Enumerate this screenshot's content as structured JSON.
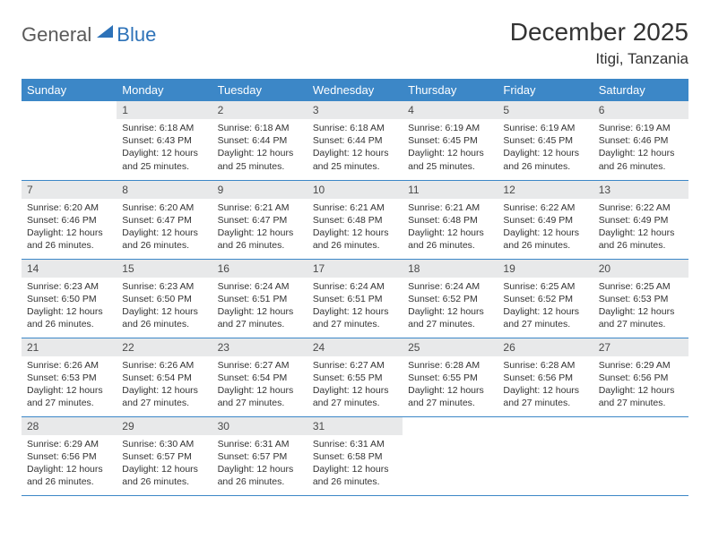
{
  "logo": {
    "general": "General",
    "blue": "Blue"
  },
  "title": "December 2025",
  "location": "Itigi, Tanzania",
  "weekdays": [
    "Sunday",
    "Monday",
    "Tuesday",
    "Wednesday",
    "Thursday",
    "Friday",
    "Saturday"
  ],
  "colors": {
    "header_bg": "#3c87c7",
    "header_fg": "#ffffff",
    "daynum_bg": "#e8e9ea",
    "row_border": "#3c87c7",
    "text": "#333333"
  },
  "weeks": [
    [
      {
        "empty": true
      },
      {
        "n": "1",
        "sunrise": "Sunrise: 6:18 AM",
        "sunset": "Sunset: 6:43 PM",
        "day1": "Daylight: 12 hours",
        "day2": "and 25 minutes."
      },
      {
        "n": "2",
        "sunrise": "Sunrise: 6:18 AM",
        "sunset": "Sunset: 6:44 PM",
        "day1": "Daylight: 12 hours",
        "day2": "and 25 minutes."
      },
      {
        "n": "3",
        "sunrise": "Sunrise: 6:18 AM",
        "sunset": "Sunset: 6:44 PM",
        "day1": "Daylight: 12 hours",
        "day2": "and 25 minutes."
      },
      {
        "n": "4",
        "sunrise": "Sunrise: 6:19 AM",
        "sunset": "Sunset: 6:45 PM",
        "day1": "Daylight: 12 hours",
        "day2": "and 25 minutes."
      },
      {
        "n": "5",
        "sunrise": "Sunrise: 6:19 AM",
        "sunset": "Sunset: 6:45 PM",
        "day1": "Daylight: 12 hours",
        "day2": "and 26 minutes."
      },
      {
        "n": "6",
        "sunrise": "Sunrise: 6:19 AM",
        "sunset": "Sunset: 6:46 PM",
        "day1": "Daylight: 12 hours",
        "day2": "and 26 minutes."
      }
    ],
    [
      {
        "n": "7",
        "sunrise": "Sunrise: 6:20 AM",
        "sunset": "Sunset: 6:46 PM",
        "day1": "Daylight: 12 hours",
        "day2": "and 26 minutes."
      },
      {
        "n": "8",
        "sunrise": "Sunrise: 6:20 AM",
        "sunset": "Sunset: 6:47 PM",
        "day1": "Daylight: 12 hours",
        "day2": "and 26 minutes."
      },
      {
        "n": "9",
        "sunrise": "Sunrise: 6:21 AM",
        "sunset": "Sunset: 6:47 PM",
        "day1": "Daylight: 12 hours",
        "day2": "and 26 minutes."
      },
      {
        "n": "10",
        "sunrise": "Sunrise: 6:21 AM",
        "sunset": "Sunset: 6:48 PM",
        "day1": "Daylight: 12 hours",
        "day2": "and 26 minutes."
      },
      {
        "n": "11",
        "sunrise": "Sunrise: 6:21 AM",
        "sunset": "Sunset: 6:48 PM",
        "day1": "Daylight: 12 hours",
        "day2": "and 26 minutes."
      },
      {
        "n": "12",
        "sunrise": "Sunrise: 6:22 AM",
        "sunset": "Sunset: 6:49 PM",
        "day1": "Daylight: 12 hours",
        "day2": "and 26 minutes."
      },
      {
        "n": "13",
        "sunrise": "Sunrise: 6:22 AM",
        "sunset": "Sunset: 6:49 PM",
        "day1": "Daylight: 12 hours",
        "day2": "and 26 minutes."
      }
    ],
    [
      {
        "n": "14",
        "sunrise": "Sunrise: 6:23 AM",
        "sunset": "Sunset: 6:50 PM",
        "day1": "Daylight: 12 hours",
        "day2": "and 26 minutes."
      },
      {
        "n": "15",
        "sunrise": "Sunrise: 6:23 AM",
        "sunset": "Sunset: 6:50 PM",
        "day1": "Daylight: 12 hours",
        "day2": "and 26 minutes."
      },
      {
        "n": "16",
        "sunrise": "Sunrise: 6:24 AM",
        "sunset": "Sunset: 6:51 PM",
        "day1": "Daylight: 12 hours",
        "day2": "and 27 minutes."
      },
      {
        "n": "17",
        "sunrise": "Sunrise: 6:24 AM",
        "sunset": "Sunset: 6:51 PM",
        "day1": "Daylight: 12 hours",
        "day2": "and 27 minutes."
      },
      {
        "n": "18",
        "sunrise": "Sunrise: 6:24 AM",
        "sunset": "Sunset: 6:52 PM",
        "day1": "Daylight: 12 hours",
        "day2": "and 27 minutes."
      },
      {
        "n": "19",
        "sunrise": "Sunrise: 6:25 AM",
        "sunset": "Sunset: 6:52 PM",
        "day1": "Daylight: 12 hours",
        "day2": "and 27 minutes."
      },
      {
        "n": "20",
        "sunrise": "Sunrise: 6:25 AM",
        "sunset": "Sunset: 6:53 PM",
        "day1": "Daylight: 12 hours",
        "day2": "and 27 minutes."
      }
    ],
    [
      {
        "n": "21",
        "sunrise": "Sunrise: 6:26 AM",
        "sunset": "Sunset: 6:53 PM",
        "day1": "Daylight: 12 hours",
        "day2": "and 27 minutes."
      },
      {
        "n": "22",
        "sunrise": "Sunrise: 6:26 AM",
        "sunset": "Sunset: 6:54 PM",
        "day1": "Daylight: 12 hours",
        "day2": "and 27 minutes."
      },
      {
        "n": "23",
        "sunrise": "Sunrise: 6:27 AM",
        "sunset": "Sunset: 6:54 PM",
        "day1": "Daylight: 12 hours",
        "day2": "and 27 minutes."
      },
      {
        "n": "24",
        "sunrise": "Sunrise: 6:27 AM",
        "sunset": "Sunset: 6:55 PM",
        "day1": "Daylight: 12 hours",
        "day2": "and 27 minutes."
      },
      {
        "n": "25",
        "sunrise": "Sunrise: 6:28 AM",
        "sunset": "Sunset: 6:55 PM",
        "day1": "Daylight: 12 hours",
        "day2": "and 27 minutes."
      },
      {
        "n": "26",
        "sunrise": "Sunrise: 6:28 AM",
        "sunset": "Sunset: 6:56 PM",
        "day1": "Daylight: 12 hours",
        "day2": "and 27 minutes."
      },
      {
        "n": "27",
        "sunrise": "Sunrise: 6:29 AM",
        "sunset": "Sunset: 6:56 PM",
        "day1": "Daylight: 12 hours",
        "day2": "and 27 minutes."
      }
    ],
    [
      {
        "n": "28",
        "sunrise": "Sunrise: 6:29 AM",
        "sunset": "Sunset: 6:56 PM",
        "day1": "Daylight: 12 hours",
        "day2": "and 26 minutes."
      },
      {
        "n": "29",
        "sunrise": "Sunrise: 6:30 AM",
        "sunset": "Sunset: 6:57 PM",
        "day1": "Daylight: 12 hours",
        "day2": "and 26 minutes."
      },
      {
        "n": "30",
        "sunrise": "Sunrise: 6:31 AM",
        "sunset": "Sunset: 6:57 PM",
        "day1": "Daylight: 12 hours",
        "day2": "and 26 minutes."
      },
      {
        "n": "31",
        "sunrise": "Sunrise: 6:31 AM",
        "sunset": "Sunset: 6:58 PM",
        "day1": "Daylight: 12 hours",
        "day2": "and 26 minutes."
      },
      {
        "empty": true
      },
      {
        "empty": true
      },
      {
        "empty": true
      }
    ]
  ]
}
